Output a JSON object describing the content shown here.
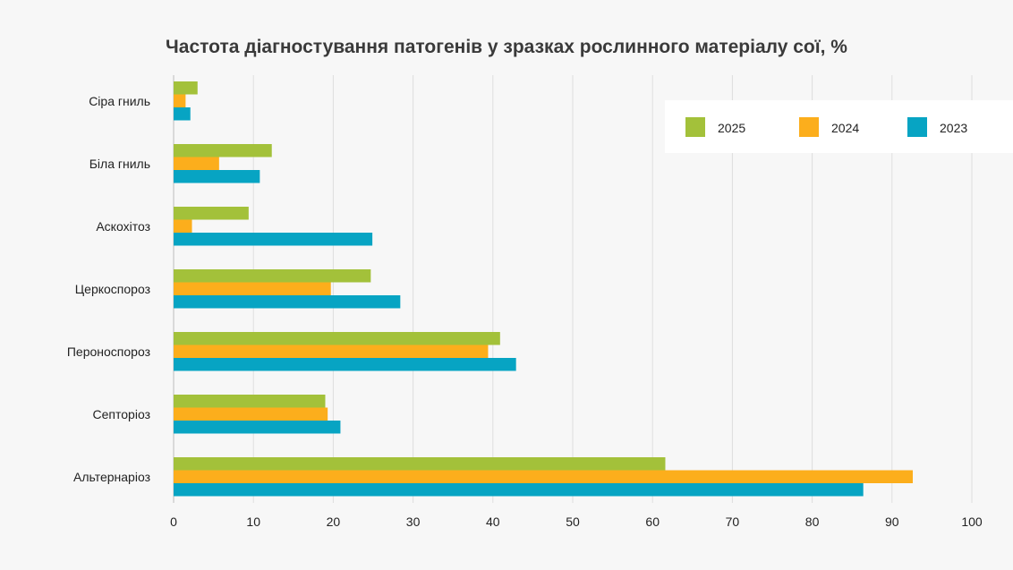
{
  "chart_data": {
    "type": "bar",
    "orientation": "horizontal",
    "title": "Частота діагностування патогенів у зразках рослинного матеріалу сої, %",
    "xlabel": "",
    "ylabel": "",
    "categories": [
      "Сіра гниль",
      "Біла гниль",
      "Аскохітоз",
      "Церкоспороз",
      "Пероноспороз",
      "Септоріоз",
      "Альтернаріоз"
    ],
    "series": [
      {
        "name": "2025",
        "color": "#a3c13a",
        "values": [
          3.0,
          12.3,
          9.4,
          24.7,
          40.9,
          19.0,
          61.6
        ]
      },
      {
        "name": "2024",
        "color": "#fcae1c",
        "values": [
          1.5,
          5.7,
          2.3,
          19.7,
          39.4,
          19.3,
          92.6
        ]
      },
      {
        "name": "2023",
        "color": "#07a4c3",
        "values": [
          2.1,
          10.8,
          24.9,
          28.4,
          42.9,
          20.9,
          86.4
        ]
      }
    ],
    "xlim": [
      0,
      100
    ],
    "xticks": [
      "0",
      "10",
      "20",
      "30",
      "40",
      "50",
      "60",
      "70",
      "80",
      "90",
      "100"
    ],
    "grid": true,
    "legend_position": "top-right"
  }
}
